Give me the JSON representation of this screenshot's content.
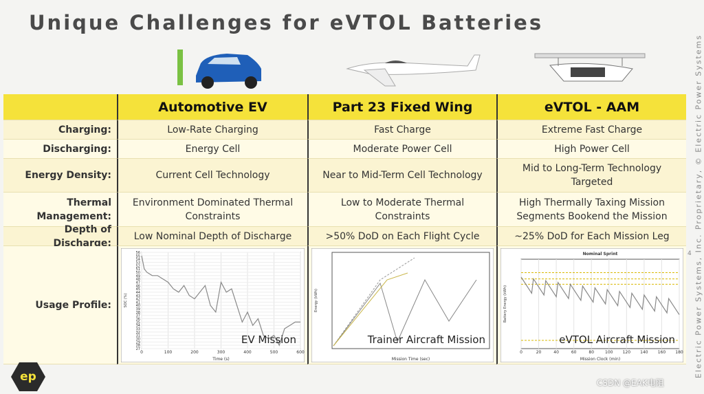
{
  "title": "Unique Challenges for eVTOL Batteries",
  "table": {
    "columns": [
      "Automotive EV",
      "Part 23 Fixed Wing",
      "eVTOL - AAM"
    ],
    "rows": [
      {
        "label": "Charging:",
        "cells": [
          "Low-Rate Charging",
          "Fast Charge",
          "Extreme Fast Charge"
        ]
      },
      {
        "label": "Discharging:",
        "cells": [
          "Energy Cell",
          "Moderate Power Cell",
          "High Power Cell"
        ]
      },
      {
        "label": "Energy Density:",
        "cells": [
          "Current Cell Technology",
          "Near to Mid-Term Cell Technology",
          "Mid to Long-Term Technology Targeted"
        ]
      },
      {
        "label": "Thermal Management:",
        "cells": [
          "Environment Dominated Thermal Constraints",
          "Low to Moderate Thermal Constraints",
          "High Thermally Taxing Mission Segments Bookend the Mission"
        ]
      },
      {
        "label": "Depth of Discharge:",
        "cells": [
          "Low Nominal Depth of Discharge",
          ">50% DoD on Each Flight Cycle",
          "~25% DoD for Each Mission Leg"
        ]
      }
    ],
    "usage": {
      "label": "Usage Profile:",
      "charts": [
        {
          "type": "line",
          "label": "EV Mission",
          "xlabel": "Time (s)",
          "ylabel": "SOC (%)",
          "xlim": [
            0,
            600
          ],
          "ylim": [
            27,
            56
          ],
          "xticks": [
            0,
            100,
            200,
            300,
            400,
            500,
            600
          ],
          "yticks": [
            27,
            28,
            29,
            30,
            31,
            32,
            33,
            34,
            35,
            36,
            37,
            38,
            39,
            40,
            41,
            42,
            43,
            44,
            45,
            46,
            47,
            48,
            49,
            50,
            51,
            52,
            53,
            54,
            55,
            56
          ],
          "x": [
            0,
            10,
            20,
            40,
            60,
            80,
            100,
            120,
            140,
            160,
            180,
            200,
            220,
            240,
            260,
            280,
            300,
            320,
            340,
            360,
            380,
            400,
            420,
            440,
            460,
            480,
            500,
            520,
            540,
            560,
            580,
            600
          ],
          "values": [
            55,
            51,
            50,
            49,
            49,
            48,
            47,
            45,
            44,
            46,
            43,
            42,
            44,
            46,
            40,
            38,
            47,
            44,
            45,
            40,
            35,
            38,
            34,
            36,
            31,
            30,
            31,
            28,
            33,
            34,
            35,
            35
          ]
        },
        {
          "type": "line",
          "label": "Trainer Aircraft Mission",
          "xlabel": "Mission Time (sec)",
          "ylabel": "Energy (kWh)"
        },
        {
          "type": "line",
          "label": "eVTOL Aircraft Mission",
          "title": "Nominal Sprint",
          "xlabel": "Mission Clock (min)",
          "ylabel": "Battery Energy (kWh)",
          "xlim": [
            0,
            180
          ],
          "ylim": [
            0,
            100
          ],
          "xticks": [
            0,
            20,
            40,
            60,
            80,
            100,
            120,
            140,
            160,
            180
          ],
          "x": [
            0,
            12,
            14,
            26,
            28,
            40,
            42,
            54,
            56,
            68,
            70,
            82,
            84,
            96,
            98,
            110,
            112,
            124,
            126,
            138,
            140,
            152,
            154,
            166,
            168,
            180
          ],
          "values": [
            80,
            62,
            78,
            60,
            76,
            58,
            74,
            56,
            72,
            54,
            70,
            52,
            68,
            50,
            66,
            48,
            64,
            46,
            62,
            44,
            60,
            42,
            58,
            40,
            56,
            38
          ]
        }
      ]
    }
  },
  "footer": {
    "side_text": "Electric Power Systems, Inc. Proprietary, © Electric Power Systems",
    "page_number": "4",
    "logo": "ep",
    "watermark": "CSDN @EAK电阻"
  }
}
